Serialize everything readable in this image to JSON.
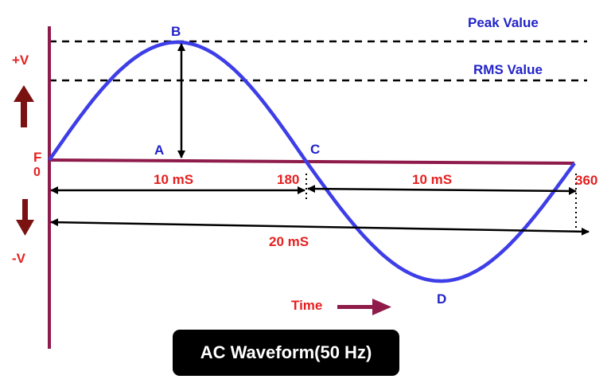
{
  "diagram": {
    "title": "AC Waveform(50 Hz)",
    "reference_lines": {
      "peak": "Peak Value",
      "rms": "RMS Value"
    },
    "axis_labels": {
      "positive": "+V",
      "negative": "-V",
      "zero": "0",
      "time": "Time"
    },
    "points": {
      "a": "A",
      "b": "B",
      "c": "C",
      "d": "D",
      "f": "F"
    },
    "angle_labels": {
      "half": "180",
      "full": "360"
    },
    "durations": {
      "first_half": "10 mS",
      "second_half": "10 mS",
      "full_cycle": "20 mS"
    },
    "colors": {
      "axis": "#8e1b4a",
      "wave": "#3e3ee8",
      "label_red": "#e52020",
      "label_blue": "#2323c8",
      "arrow": "#000000",
      "arrow_dark_red": "#7a1212"
    }
  }
}
